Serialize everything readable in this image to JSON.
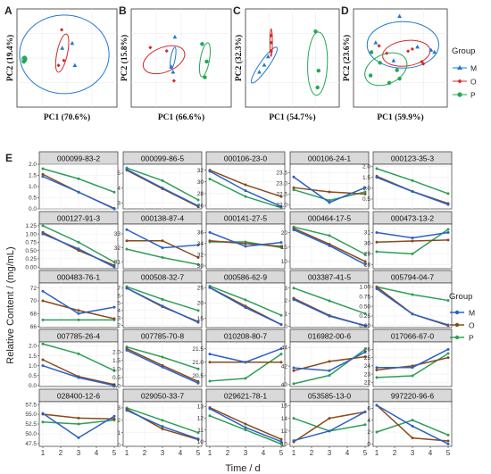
{
  "chart_data": [
    {
      "type": "scatter",
      "panel": "A",
      "xlabel": "PC1 (70.6%)",
      "ylabel": "PC2 (19.4%)",
      "points": {
        "M": [
          [
            2.5,
            1.2
          ],
          [
            0.6,
            0.8
          ],
          [
            3.0,
            -0.6
          ]
        ],
        "O": [
          [
            0.5,
            2.3
          ],
          [
            0.9,
            -0.2
          ],
          [
            -0.1,
            -0.6
          ]
        ],
        "P": [
          [
            -6.6,
            0.0
          ],
          [
            -6.7,
            -0.3
          ],
          [
            -6.4,
            -0.1
          ]
        ]
      }
    },
    {
      "type": "scatter",
      "panel": "B",
      "xlabel": "PC1 (66.6%)",
      "ylabel": "PC2 (15.8%)",
      "points": {
        "M": [
          [
            -0.4,
            -0.8
          ],
          [
            -0.6,
            -0.5
          ],
          [
            -0.2,
            1.2
          ]
        ],
        "O": [
          [
            -2.9,
            0.6
          ],
          [
            -1.1,
            0.4
          ],
          [
            -0.3,
            -1.3
          ]
        ],
        "P": [
          [
            2.8,
            0.8
          ],
          [
            3.3,
            -0.2
          ],
          [
            3.1,
            -1.1
          ]
        ]
      }
    },
    {
      "type": "scatter",
      "panel": "C",
      "xlabel": "PC1 (54.7%)",
      "ylabel": "PC2 (32.3%)",
      "points": {
        "M": [
          [
            -3.1,
            -1.0
          ],
          [
            -2.6,
            -0.5
          ],
          [
            -2.2,
            0.1
          ]
        ],
        "O": [
          [
            -1.9,
            1.6
          ],
          [
            -1.9,
            1.1
          ],
          [
            -1.9,
            0.5
          ]
        ],
        "P": [
          [
            2.6,
            1.9
          ],
          [
            2.9,
            -0.9
          ],
          [
            2.8,
            -2.1
          ]
        ]
      }
    },
    {
      "type": "scatter",
      "panel": "D",
      "xlabel": "PC1 (59.9%)",
      "ylabel": "PC2 (23.6%)",
      "points": {
        "M": [
          [
            0.9,
            4.1
          ],
          [
            3.0,
            1.2
          ],
          [
            4.6,
            0.9
          ],
          [
            5.0,
            0.7
          ],
          [
            -1.9,
            1.6
          ],
          [
            0.2,
            -0.1
          ]
        ],
        "O": [
          [
            1.9,
            0.8
          ],
          [
            2.4,
            1.0
          ],
          [
            3.7,
            -0.4
          ],
          [
            3.5,
            -0.2
          ],
          [
            -1.5,
            1.3
          ],
          [
            -0.6,
            0.6
          ]
        ],
        "P": [
          [
            -2.4,
            0.7
          ],
          [
            -2.5,
            -1.5
          ],
          [
            -1.4,
            -0.3
          ],
          [
            0.6,
            -1.0
          ],
          [
            0.9,
            -1.8
          ],
          [
            -0.3,
            -2.2
          ]
        ]
      }
    },
    {
      "type": "line",
      "panel": "E",
      "ylabel": "Relative Content / (mg/mL)",
      "xlabel": "Time / d",
      "x": [
        1,
        3,
        5
      ],
      "legend_title": "Group",
      "legend": [
        "M",
        "O",
        "P"
      ],
      "colors": {
        "M": "#2b61c6",
        "O": "#8a4a1a",
        "P": "#2e9e58",
        "M_pca": "#1f77d4",
        "O_pca": "#d42a2a",
        "P_pca": "#22a854"
      },
      "panels": [
        {
          "title": "000099-83-2",
          "yticks": [
            "0.0",
            "0.5",
            "1.0",
            "1.5",
            "2.0"
          ],
          "ylim": [
            0,
            2.0
          ],
          "M": [
            1.45,
            0.75,
            0.0
          ],
          "O": [
            1.55,
            0.75,
            0.02
          ],
          "P": [
            1.8,
            1.35,
            0.75
          ]
        },
        {
          "title": "000099-86-5",
          "yticks": [
            "3",
            "4",
            "5"
          ],
          "ylim": [
            2.6,
            5.6
          ],
          "M": [
            5.25,
            4.0,
            2.8
          ],
          "O": [
            5.2,
            3.95,
            2.75
          ],
          "P": [
            5.35,
            4.5,
            3.2
          ]
        },
        {
          "title": "000106-23-0",
          "yticks": [
            "26",
            "28",
            "30",
            "32"
          ],
          "ylim": [
            25.4,
            33.0
          ],
          "M": [
            31.8,
            28.5,
            25.8
          ],
          "O": [
            32.0,
            29.5,
            27.5
          ],
          "P": [
            30.5,
            27.5,
            25.6
          ]
        },
        {
          "title": "000106-24-1",
          "yticks": [
            "22.0",
            "22.5",
            "23.0",
            "23.5"
          ],
          "ylim": [
            21.8,
            23.9
          ],
          "M": [
            23.3,
            22.1,
            22.8
          ],
          "O": [
            22.8,
            22.6,
            22.5
          ],
          "P": [
            22.7,
            22.2,
            22.6
          ]
        },
        {
          "title": "000123-35-3",
          "yticks": [
            "0.5",
            "1.0",
            "1.5",
            "2.0"
          ],
          "ylim": [
            0.05,
            2.1
          ],
          "M": [
            1.5,
            0.85,
            0.25
          ],
          "O": [
            1.55,
            0.85,
            0.3
          ],
          "P": [
            1.9,
            1.35,
            0.75
          ]
        },
        {
          "title": "000127-91-3",
          "yticks": [
            "0.00",
            "0.25",
            "0.50",
            "0.75",
            "1.00",
            "1.25"
          ],
          "ylim": [
            -0.05,
            1.3
          ],
          "M": [
            1.0,
            0.55,
            0.0
          ],
          "O": [
            1.05,
            0.5,
            0.05
          ],
          "P": [
            1.25,
            0.75,
            0.15
          ]
        },
        {
          "title": "000138-87-4",
          "yticks": [
            "31",
            "32",
            "33"
          ],
          "ylim": [
            30.5,
            33.7
          ],
          "M": [
            33.3,
            32.0,
            32.2
          ],
          "O": [
            32.5,
            32.5,
            31.3
          ],
          "P": [
            31.9,
            31.3,
            30.8
          ]
        },
        {
          "title": "000141-27-5",
          "yticks": [
            "30",
            "32",
            "34",
            "36"
          ],
          "ylim": [
            29.5,
            37.5
          ],
          "M": [
            36.0,
            33.5,
            34.2
          ],
          "O": [
            34.5,
            34.0,
            33.5
          ],
          "P": [
            34.3,
            34.3,
            33.3
          ]
        },
        {
          "title": "000464-17-5",
          "yticks": [
            "10",
            "15",
            "20"
          ],
          "ylim": [
            7.5,
            23.0
          ],
          "M": [
            21.0,
            15.5,
            9.0
          ],
          "O": [
            21.5,
            16.0,
            10.0
          ],
          "P": [
            22.0,
            19.0,
            12.5
          ]
        },
        {
          "title": "000473-13-2",
          "yticks": [
            "28",
            "29",
            "30",
            "31"
          ],
          "ylim": [
            27.6,
            31.8
          ],
          "M": [
            31.0,
            30.5,
            31.0
          ],
          "O": [
            30.1,
            30.2,
            30.3
          ],
          "P": [
            29.2,
            29.0,
            31.3
          ]
        },
        {
          "title": "000483-76-1",
          "yticks": [
            "66",
            "68",
            "70",
            "72"
          ],
          "ylim": [
            65.8,
            72.8
          ],
          "M": [
            71.5,
            68.0,
            69.0
          ],
          "O": [
            70.0,
            68.5,
            67.2
          ],
          "P": [
            67.0,
            67.0,
            67.0
          ]
        },
        {
          "title": "000508-32-7",
          "yticks": [
            "2",
            "3",
            "4",
            "5",
            "6",
            "7"
          ],
          "ylim": [
            1.7,
            7.7
          ],
          "M": [
            7.0,
            4.6,
            2.4
          ],
          "O": [
            7.0,
            4.5,
            2.5
          ],
          "P": [
            7.2,
            5.5,
            4.0
          ]
        },
        {
          "title": "000586-62-9",
          "yticks": [
            "15",
            "20",
            "25"
          ],
          "ylim": [
            12.0,
            26.5
          ],
          "M": [
            25.0,
            18.5,
            13.0
          ],
          "O": [
            25.0,
            19.0,
            13.0
          ],
          "P": [
            25.5,
            21.0,
            16.0
          ]
        },
        {
          "title": "003387-41-5",
          "yticks": [
            "0",
            "1",
            "2",
            "3"
          ],
          "ylim": [
            -0.1,
            3.4
          ],
          "M": [
            2.1,
            0.8,
            0.05
          ],
          "O": [
            2.2,
            0.85,
            0.05
          ],
          "P": [
            3.0,
            2.0,
            1.0
          ]
        },
        {
          "title": "005794-04-7",
          "yticks": [
            "0.00",
            "0.25",
            "0.50",
            "0.75",
            "1.00"
          ],
          "ylim": [
            -0.05,
            1.1
          ],
          "M": [
            0.95,
            0.3,
            0.02
          ],
          "O": [
            1.0,
            0.3,
            0.0
          ],
          "P": [
            1.0,
            0.8,
            0.65
          ]
        },
        {
          "title": "007785-26-4",
          "yticks": [
            "0.0",
            "0.5",
            "1.0",
            "1.5",
            "2.0"
          ],
          "ylim": [
            -0.05,
            2.2
          ],
          "M": [
            1.0,
            0.4,
            0.0
          ],
          "O": [
            1.3,
            0.45,
            0.05
          ],
          "P": [
            2.1,
            1.6,
            0.75
          ]
        },
        {
          "title": "007785-70-8",
          "yticks": [
            "0.0",
            "0.5",
            "1.0",
            "1.5",
            "2.0"
          ],
          "ylim": [
            -0.05,
            2.6
          ],
          "M": [
            2.1,
            1.1,
            0.15
          ],
          "O": [
            2.2,
            1.2,
            0.25
          ],
          "P": [
            2.3,
            1.7,
            1.0
          ]
        },
        {
          "title": "010208-80-7",
          "yticks": [
            "20.5",
            "21.0",
            "21.5"
          ],
          "ylim": [
            20.1,
            21.75
          ],
          "M": [
            21.3,
            21.0,
            21.5
          ],
          "O": [
            21.0,
            21.0,
            21.0
          ],
          "P": [
            20.3,
            20.4,
            21.3
          ]
        },
        {
          "title": "016982-00-6",
          "yticks": [
            "40",
            "42",
            "44"
          ],
          "ylim": [
            39.8,
            44.6
          ],
          "M": [
            41.8,
            41.5,
            43.5
          ],
          "O": [
            41.5,
            42.5,
            43.0
          ],
          "P": [
            40.1,
            41.0,
            43.8
          ]
        },
        {
          "title": "017066-67-0",
          "yticks": [
            "22",
            "23",
            "24",
            "25",
            "26"
          ],
          "ylim": [
            21.5,
            26.9
          ],
          "M": [
            23.8,
            23.8,
            26.0
          ],
          "O": [
            23.5,
            24.0,
            25.0
          ],
          "P": [
            22.6,
            22.8,
            25.5
          ]
        },
        {
          "title": "028400-12-6",
          "yticks": [
            "47.5",
            "50.0",
            "52.5",
            "55.0",
            "57.5"
          ],
          "ylim": [
            46.8,
            58.2
          ],
          "M": [
            55.2,
            49.0,
            54.5
          ],
          "O": [
            55.0,
            54.0,
            53.8
          ],
          "P": [
            53.0,
            52.5,
            53.5
          ]
        },
        {
          "title": "029050-33-7",
          "yticks": [
            "0",
            "1",
            "2",
            "3"
          ],
          "ylim": [
            -0.1,
            3.5
          ],
          "M": [
            2.8,
            1.5,
            0.5
          ],
          "O": [
            2.9,
            1.3,
            0.45
          ],
          "P": [
            3.0,
            2.0,
            1.0
          ]
        },
        {
          "title": "029621-78-1",
          "yticks": [
            "10",
            "11",
            "12",
            "13"
          ],
          "ylim": [
            9.6,
            13.4
          ],
          "M": [
            12.8,
            11.2,
            10.0
          ],
          "O": [
            12.9,
            11.5,
            10.2
          ],
          "P": [
            12.2,
            11.0,
            9.8
          ]
        },
        {
          "title": "053585-13-0",
          "yticks": [
            "10",
            "12",
            "14",
            "16"
          ],
          "ylim": [
            9.6,
            16.6
          ],
          "M": [
            10.5,
            12.0,
            15.0
          ],
          "O": [
            10.3,
            14.0,
            15.0
          ],
          "P": [
            14.0,
            12.0,
            13.0
          ]
        },
        {
          "title": "997220-96-6",
          "yticks": [
            "0",
            "2",
            "4",
            "6"
          ],
          "ylim": [
            -0.4,
            7.1
          ],
          "M": [
            6.5,
            3.0,
            0.0
          ],
          "O": [
            6.5,
            1.0,
            0.5
          ],
          "P": [
            2.0,
            4.0,
            1.5
          ]
        }
      ]
    }
  ]
}
